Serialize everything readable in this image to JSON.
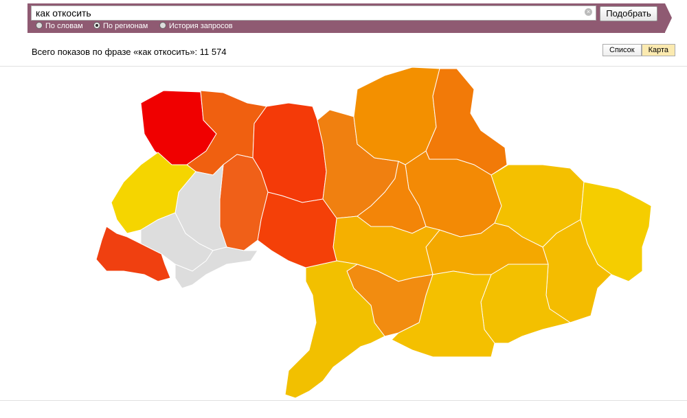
{
  "search": {
    "query": "как откосить",
    "button": "Подобрать",
    "modes": [
      "По словам",
      "По регионам",
      "История запросов"
    ]
  },
  "summary": {
    "label": "Всего показов по фразе «как откосить»:",
    "count": "11 574"
  },
  "view_tabs": [
    "Список",
    "Карта"
  ]
}
